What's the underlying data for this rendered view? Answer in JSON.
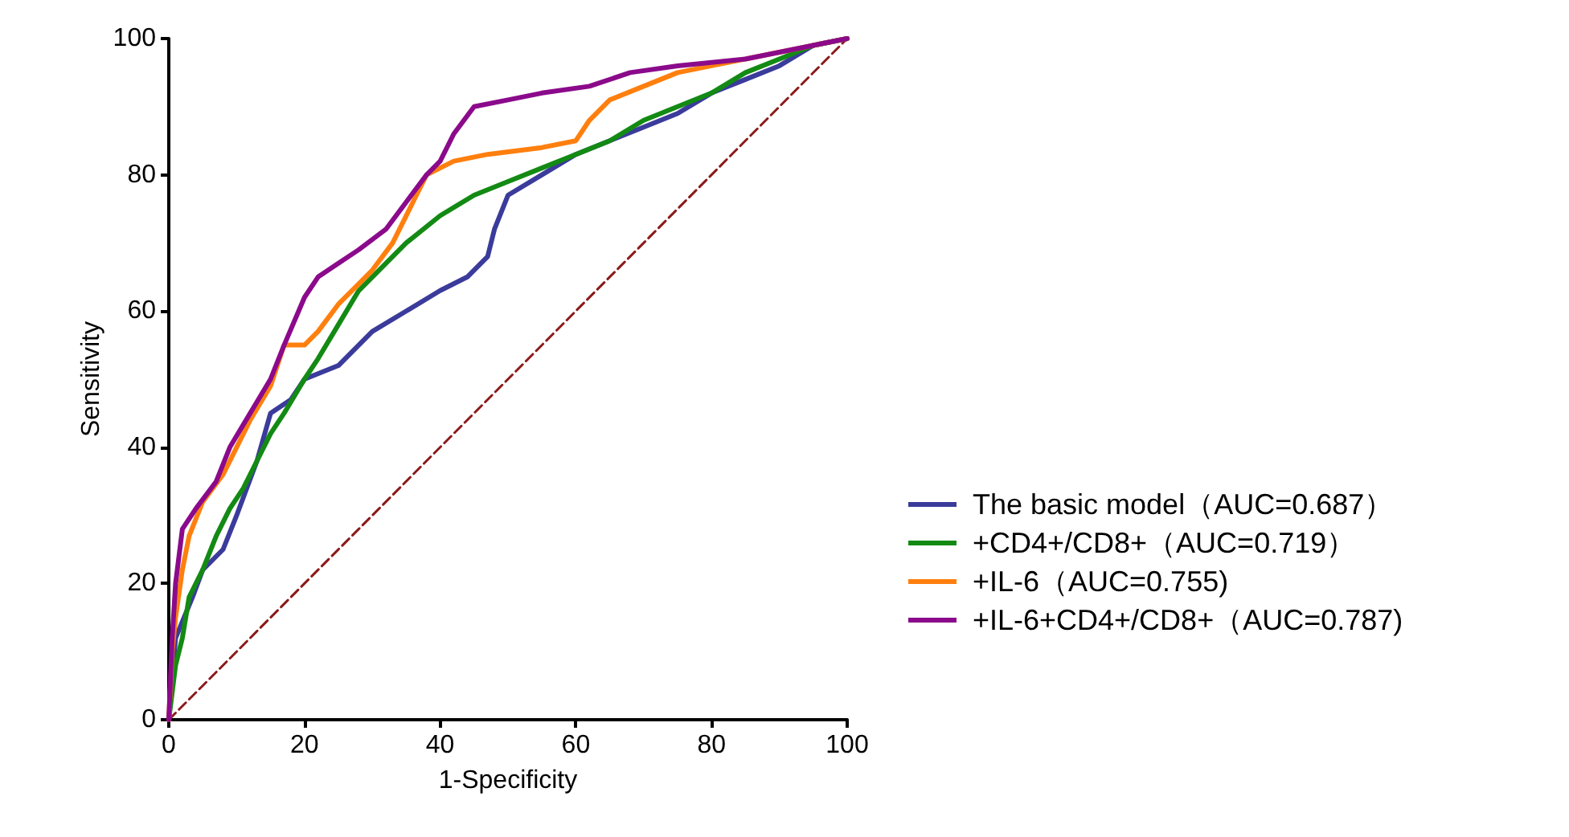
{
  "chart_data": {
    "type": "line",
    "xlabel": "1-Specificity",
    "ylabel": "Sensitivity",
    "xlim": [
      0,
      100
    ],
    "ylim": [
      0,
      100
    ],
    "xticks": [
      0,
      20,
      40,
      60,
      80,
      100
    ],
    "yticks": [
      0,
      20,
      40,
      60,
      80,
      100
    ],
    "grid": false,
    "legend": "right",
    "marker": "none",
    "line_style": "solid",
    "series": [
      {
        "name": "The basic model（AUC=0.687）",
        "color": "#3b3b9b",
        "x": [
          0,
          1,
          3.5,
          5,
          8,
          10,
          13,
          15,
          18,
          20,
          25,
          28,
          30,
          35,
          40,
          44,
          47,
          48,
          50,
          55,
          60,
          65,
          70,
          75,
          80,
          85,
          90,
          95,
          100
        ],
        "values": [
          0,
          12,
          18,
          22,
          25,
          30,
          38,
          45,
          47,
          50,
          52,
          55,
          57,
          60,
          63,
          65,
          68,
          72,
          77,
          80,
          83,
          85,
          87,
          89,
          92,
          94,
          96,
          99,
          100
        ]
      },
      {
        "name": "+CD4+/CD8+（AUC=0.719）",
        "color": "#138a13",
        "x": [
          0,
          1,
          2,
          3,
          5,
          7,
          9,
          11,
          13,
          15,
          17,
          20,
          22,
          25,
          28,
          32,
          35,
          40,
          45,
          50,
          55,
          60,
          65,
          70,
          75,
          80,
          85,
          90,
          95,
          100
        ],
        "values": [
          0,
          8,
          12,
          18,
          22,
          27,
          31,
          34,
          38,
          42,
          45,
          50,
          53,
          58,
          63,
          67,
          70,
          74,
          77,
          79,
          81,
          83,
          85,
          88,
          90,
          92,
          95,
          97,
          99,
          100
        ]
      },
      {
        "name": "+IL-6（AUC=0.755)",
        "color": "#ff7f0e",
        "x": [
          0,
          0.5,
          1,
          2,
          3,
          5,
          8,
          10,
          12,
          15,
          17,
          20,
          22,
          25,
          28,
          30,
          33,
          36,
          38,
          42,
          47,
          55,
          60,
          62,
          65,
          70,
          75,
          80,
          90,
          95,
          100
        ],
        "values": [
          0,
          10,
          15,
          22,
          27,
          32,
          36,
          40,
          44,
          49,
          55,
          55,
          57,
          61,
          64,
          66,
          70,
          76,
          80,
          82,
          83,
          84,
          85,
          88,
          91,
          93,
          95,
          96,
          98,
          99,
          100
        ]
      },
      {
        "name": "+IL-6+CD4+/CD8+（AUC=0.787)",
        "color": "#8b0a8b",
        "x": [
          0,
          0.5,
          1,
          2,
          4,
          7,
          9,
          12,
          15,
          17,
          20,
          22,
          25,
          28,
          32,
          35,
          38,
          40,
          42,
          45,
          50,
          55,
          62,
          68,
          75,
          85,
          95,
          100
        ],
        "values": [
          0,
          12,
          20,
          28,
          31,
          35,
          40,
          45,
          50,
          55,
          62,
          65,
          67,
          69,
          72,
          76,
          80,
          82,
          86,
          90,
          91,
          92,
          93,
          95,
          96,
          97,
          99,
          100
        ]
      },
      {
        "type": "line",
        "line_style": "dashed",
        "color": "#8b1a1a",
        "x": [
          0,
          100
        ],
        "values": [
          0,
          100
        ]
      }
    ]
  }
}
